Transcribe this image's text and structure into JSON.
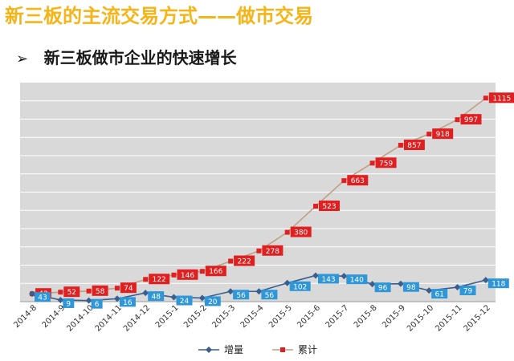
{
  "header": {
    "title": "新三板的主流交易方式——做市交易",
    "bullet": "➢",
    "subtitle": "新三板做市企业的快速增长"
  },
  "colors": {
    "title": "#f5b417",
    "plot_background": "#d9d9d9",
    "gridline": "#ffffff",
    "cumulative_line": "#c0a080",
    "cumulative_marker": "#e02020",
    "increment_line": "#3a5f8f",
    "increment_marker": "#2f96d8"
  },
  "chart_data": {
    "type": "line",
    "title": "",
    "xlabel": "",
    "ylabel": "",
    "categories": [
      "2014-8",
      "2014-9",
      "2014-10",
      "2014-11",
      "2014-12",
      "2015-1",
      "2015-2",
      "2015-3",
      "2015-4",
      "2015-5",
      "2015-6",
      "2015-7",
      "2015-8",
      "2015-9",
      "2015-10",
      "2015-11",
      "2015-12"
    ],
    "ylim": [
      0,
      1200
    ],
    "grid": true,
    "legend_position": "bottom",
    "series": [
      {
        "name": "增量",
        "values": [
          43,
          9,
          6,
          16,
          48,
          24,
          20,
          56,
          56,
          102,
          143,
          140,
          96,
          98,
          61,
          79,
          118
        ],
        "color": "#2f96d8",
        "marker": "diamond"
      },
      {
        "name": "累计",
        "values": [
          43,
          52,
          58,
          74,
          122,
          146,
          166,
          222,
          278,
          380,
          523,
          663,
          759,
          857,
          918,
          997,
          1115
        ],
        "color": "#e02020",
        "marker": "square"
      }
    ]
  }
}
